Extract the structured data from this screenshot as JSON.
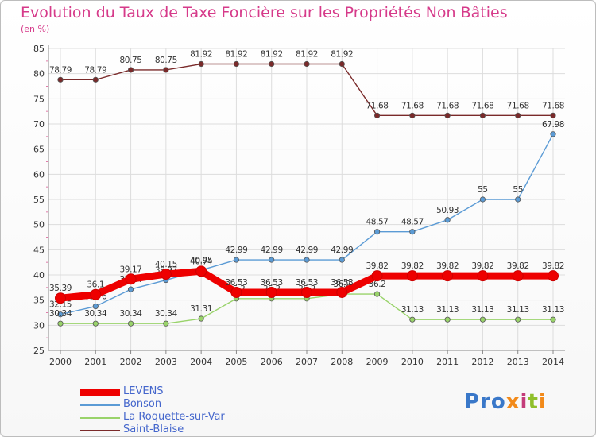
{
  "header": {
    "title": "Evolution du Taux de Taxe Foncière sur les Propriétés Non Bâties",
    "unit": "(en %)"
  },
  "logo": {
    "text": "Proxiti"
  },
  "chart_data": {
    "type": "line",
    "title": "Evolution du Taux de Taxe Foncière sur les Propriétés Non Bâties",
    "ylabel": "(en %)",
    "xlabel": "",
    "ylim": [
      25,
      85
    ],
    "yticks": [
      "25",
      "30",
      "35",
      "40",
      "45",
      "50",
      "55",
      "60",
      "65",
      "70",
      "75",
      "80",
      "85"
    ],
    "categories": [
      "2000",
      "2001",
      "2002",
      "2003",
      "2004",
      "2005",
      "2006",
      "2007",
      "2008",
      "2009",
      "2010",
      "2011",
      "2012",
      "2013",
      "2014"
    ],
    "grid": true,
    "legend_position": "bottom-left",
    "series": [
      {
        "name": "Saint-Blaise",
        "color": "#7a2a2a",
        "values": [
          78.79,
          78.79,
          80.75,
          80.75,
          81.92,
          81.92,
          81.92,
          81.92,
          81.92,
          71.68,
          71.68,
          71.68,
          71.68,
          71.68,
          71.68
        ],
        "labels": [
          "78.79",
          "78.79",
          "80.75",
          "80.75",
          "81.92",
          "81.92",
          "81.92",
          "81.92",
          "81.92",
          "71.68",
          "71.68",
          "71.68",
          "71.68",
          "71.68",
          "71.68"
        ]
      },
      {
        "name": "Bonson",
        "color": "#5b9bd5",
        "values": [
          32.15,
          33.76,
          37.14,
          38.97,
          40.95,
          42.99,
          42.99,
          42.99,
          42.99,
          48.57,
          48.57,
          50.93,
          55,
          55,
          67.98
        ],
        "labels": [
          "32.15",
          "33.76",
          "37.14",
          "38.97",
          "40.95",
          "42.99",
          "42.99",
          "42.99",
          "42.99",
          "48.57",
          "48.57",
          "50.93",
          "55",
          "55",
          "67.98"
        ]
      },
      {
        "name": "La Roquette-sur-Var",
        "color": "#99d36a",
        "values": [
          30.34,
          30.34,
          30.34,
          30.34,
          31.31,
          35.3,
          35.3,
          35.3,
          36.2,
          36.2,
          31.13,
          31.13,
          31.13,
          31.13,
          31.13
        ],
        "labels": [
          "30.34",
          "30.34",
          "30.34",
          "30.34",
          "31.31",
          "35.3",
          "35.3",
          "35.3",
          "36.2",
          "36.2",
          "31.13",
          "31.13",
          "31.13",
          "31.13",
          "31.13"
        ]
      },
      {
        "name": "LEVENS",
        "color": "#ee0000",
        "values": [
          35.39,
          36.1,
          39.17,
          40.15,
          40.74,
          36.53,
          36.53,
          36.53,
          36.53,
          39.82,
          39.82,
          39.82,
          39.82,
          39.82,
          39.82
        ],
        "labels": [
          "35.39",
          "36.1",
          "39.17",
          "40.15",
          "40.74",
          "36.53",
          "36.53",
          "36.53",
          "36.53",
          "39.82",
          "39.82",
          "39.82",
          "39.82",
          "39.82",
          "39.82"
        ]
      }
    ],
    "legend": [
      {
        "name": "LEVENS",
        "color": "#ee0000"
      },
      {
        "name": "Bonson",
        "color": "#5b9bd5"
      },
      {
        "name": "La Roquette-sur-Var",
        "color": "#99d36a"
      },
      {
        "name": "Saint-Blaise",
        "color": "#7a2a2a"
      }
    ]
  }
}
